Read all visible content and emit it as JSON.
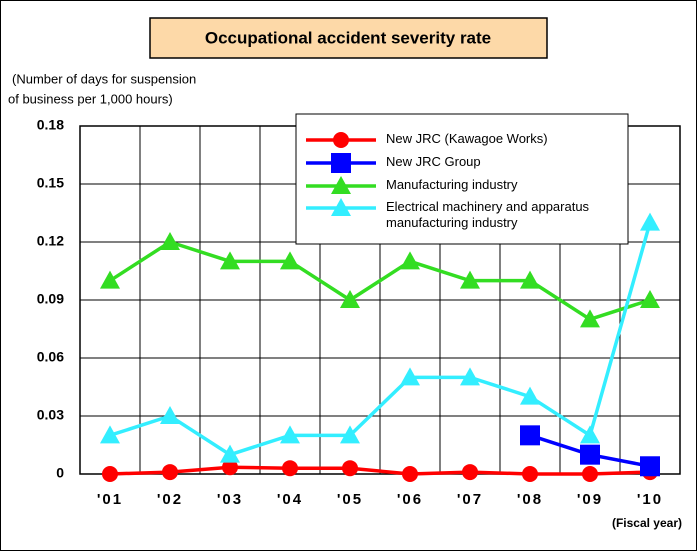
{
  "chart_data": {
    "type": "line",
    "title": "Occupational accident severity rate",
    "ylabel": [
      "(Number of days for suspension",
      "of business per 1,000 hours)"
    ],
    "xlabel": "(Fiscal year)",
    "categories": [
      "'01",
      "'02",
      "'03",
      "'04",
      "'05",
      "'06",
      "'07",
      "'08",
      "'09",
      "'10"
    ],
    "series": [
      {
        "name": "New JRC (Kawagoe Works)",
        "color": "#ff0000",
        "marker": "circle",
        "values": [
          0,
          0.001,
          0.0035,
          0.003,
          0.003,
          0,
          0.001,
          0,
          0,
          0.001
        ]
      },
      {
        "name": "New JRC Group",
        "color": "#0000ff",
        "marker": "square",
        "values": [
          null,
          null,
          null,
          null,
          null,
          null,
          null,
          0.02,
          0.01,
          0.004
        ]
      },
      {
        "name": "Manufacturing industry",
        "color": "#33dd22",
        "marker": "triangle",
        "values": [
          0.1,
          0.12,
          0.11,
          0.11,
          0.09,
          0.11,
          0.1,
          0.1,
          0.08,
          0.09
        ]
      },
      {
        "name": "Electrical machinery and apparatus manufacturing industry",
        "color": "#33eeff",
        "marker": "triangle",
        "values": [
          0.02,
          0.03,
          0.01,
          0.02,
          0.02,
          0.05,
          0.05,
          0.04,
          0.02,
          0.13
        ]
      }
    ],
    "ylim": [
      0,
      0.18
    ],
    "yticks": [
      0,
      0.03,
      0.06,
      0.09,
      0.12,
      0.15,
      0.18
    ],
    "grid": true,
    "legend": "top-right"
  }
}
